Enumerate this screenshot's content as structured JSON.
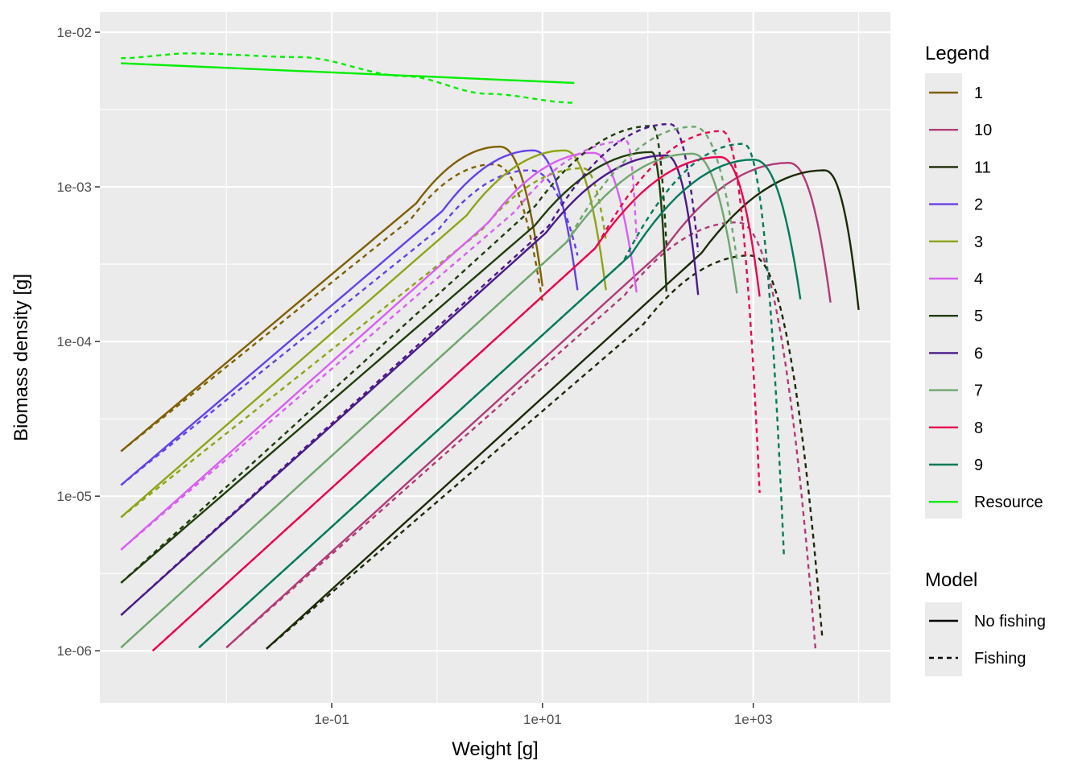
{
  "chart_data": {
    "type": "line",
    "xlabel": "Weight [g]",
    "ylabel": "Biomass density [g]",
    "x_scale": "log10",
    "y_scale": "log10",
    "xlim": [
      0.00063,
      20000
    ],
    "ylim": [
      4.6e-07,
      0.0135
    ],
    "x_ticks": [
      0.1,
      10,
      1000
    ],
    "x_tick_labels": [
      "1e-01",
      "1e+01",
      "1e+03"
    ],
    "y_ticks": [
      1e-06,
      1e-05,
      0.0001,
      0.001,
      0.01
    ],
    "y_tick_labels": [
      "1e-06",
      "1e-05",
      "1e-04",
      "1e-03",
      "1e-02"
    ],
    "grid": true,
    "legend_position": "right",
    "legend_title": "Legend",
    "model_legend_title": "Model",
    "models": [
      {
        "name": "No fishing",
        "dash": "solid"
      },
      {
        "name": "Fishing",
        "dash": "dashed"
      }
    ],
    "series": [
      {
        "name": "1",
        "color": "#7f5f00",
        "w_min": 0.001,
        "w_max": 10,
        "y_start": 1.95e-05,
        "no_fishing_peak": {
          "w": 3.9,
          "y": 0.00182
        },
        "fishing_peak": {
          "w": 3.4,
          "y": 0.0014
        },
        "fishing_w_max": 10,
        "fishing_y_end": 0.00018
      },
      {
        "name": "10",
        "color": "#b23a78",
        "w_min": 0.01,
        "w_max": 5400,
        "y_start": 1.05e-06,
        "no_fishing_peak": {
          "w": 2150,
          "y": 0.00143
        },
        "fishing_peak": {
          "w": 700,
          "y": 0.00059
        },
        "fishing_w_max": 3900,
        "fishing_y_end": 1e-06
      },
      {
        "name": "11",
        "color": "#1b2a06",
        "w_min": 0.024,
        "w_max": 10000,
        "y_start": 1.03e-06,
        "no_fishing_peak": {
          "w": 4700,
          "y": 0.00128
        },
        "fishing_peak": {
          "w": 930,
          "y": 0.00036
        },
        "fishing_w_max": 4500,
        "fishing_y_end": 1.25e-06
      },
      {
        "name": "2",
        "color": "#6441e8",
        "w_min": 0.001,
        "w_max": 21.5,
        "y_start": 1.18e-05,
        "no_fishing_peak": {
          "w": 8.1,
          "y": 0.00172
        },
        "fishing_peak": {
          "w": 7.5,
          "y": 0.00128
        },
        "fishing_w_max": 21.5,
        "fishing_y_end": 0.00036
      },
      {
        "name": "3",
        "color": "#8fa313",
        "w_min": 0.001,
        "w_max": 40,
        "y_start": 7.3e-06,
        "no_fishing_peak": {
          "w": 16,
          "y": 0.00172
        },
        "fishing_peak": {
          "w": 24,
          "y": 0.00132
        },
        "fishing_w_max": 40,
        "fishing_y_end": 0.00045
      },
      {
        "name": "4",
        "color": "#d95ff2",
        "w_min": 0.001,
        "w_max": 78,
        "y_start": 4.5e-06,
        "no_fishing_peak": {
          "w": 30,
          "y": 0.00166
        },
        "fishing_peak": {
          "w": 62,
          "y": 0.00198
        },
        "fishing_w_max": 78,
        "fishing_y_end": 0.00046
      },
      {
        "name": "5",
        "color": "#1f3d0c",
        "w_min": 0.001,
        "w_max": 150,
        "y_start": 2.75e-06,
        "no_fishing_peak": {
          "w": 108,
          "y": 0.00168
        },
        "fishing_peak": {
          "w": 110,
          "y": 0.00248
        },
        "fishing_w_max": 150,
        "fishing_y_end": 0.00042
      },
      {
        "name": "6",
        "color": "#4a1a8a",
        "w_min": 0.001,
        "w_max": 300,
        "y_start": 1.7e-06,
        "no_fishing_peak": {
          "w": 148,
          "y": 0.0016
        },
        "fishing_peak": {
          "w": 160,
          "y": 0.00255
        },
        "fishing_w_max": 300,
        "fishing_y_end": 0.00038
      },
      {
        "name": "7",
        "color": "#6fa66f",
        "w_min": 0.001,
        "w_max": 700,
        "y_start": 1.05e-06,
        "no_fishing_peak": {
          "w": 260,
          "y": 0.00164
        },
        "fishing_peak": {
          "w": 270,
          "y": 0.00245
        },
        "fishing_w_max": 700,
        "fishing_y_end": 0.00034
      },
      {
        "name": "8",
        "color": "#e8074f",
        "w_min": 0.002,
        "w_max": 1150,
        "y_start": 1e-06,
        "no_fishing_peak": {
          "w": 480,
          "y": 0.00156
        },
        "fishing_peak": {
          "w": 500,
          "y": 0.0023
        },
        "fishing_w_max": 1150,
        "fishing_y_end": 1.05e-05
      },
      {
        "name": "9",
        "color": "#007a5a",
        "w_min": 0.0055,
        "w_max": 2800,
        "y_start": 1.05e-06,
        "no_fishing_peak": {
          "w": 1000,
          "y": 0.0015
        },
        "fishing_peak": {
          "w": 800,
          "y": 0.0019
        },
        "fishing_w_max": 1950,
        "fishing_y_end": 4.2e-06
      },
      {
        "name": "Resource",
        "color": "#00ee00",
        "w_min": 0.001,
        "w_max": 20,
        "no_fishing": [
          [
            0.001,
            0.0063
          ],
          [
            20,
            0.0047
          ]
        ],
        "fishing": [
          [
            0.001,
            0.0068
          ],
          [
            0.0045,
            0.0073
          ],
          [
            0.05,
            0.0069
          ],
          [
            0.5,
            0.0052
          ],
          [
            3,
            0.004
          ],
          [
            20,
            0.0035
          ]
        ]
      }
    ]
  }
}
